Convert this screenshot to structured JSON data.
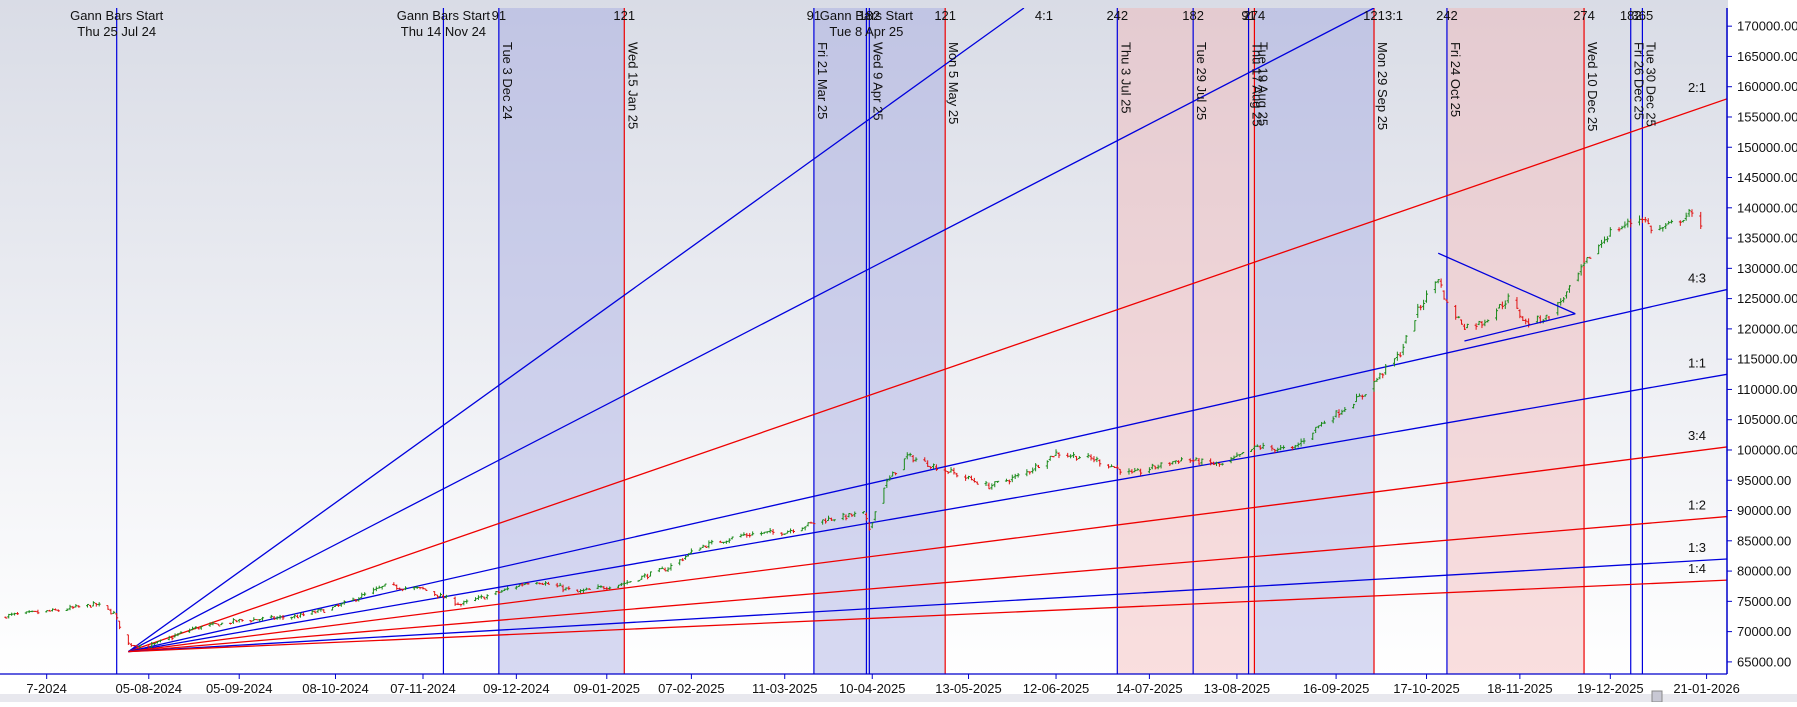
{
  "chart_data": {
    "type": "candlestick",
    "y_axis": {
      "range": [
        63000,
        173000
      ],
      "ticks": [
        "65000.00",
        "70000.00",
        "75000.00",
        "80000.00",
        "85000.00",
        "90000.00",
        "95000.00",
        "100000.00",
        "105000.00",
        "110000.00",
        "115000.00",
        "120000.00",
        "125000.00",
        "130000.00",
        "135000.00",
        "140000.00",
        "145000.00",
        "150000.00",
        "155000.00",
        "160000.00",
        "165000.00",
        "170000.00"
      ]
    },
    "x_axis": {
      "range_start": "2024-06-15",
      "range_end": "2026-01-28",
      "ticks": [
        "2024-07-01",
        "2024-08-05",
        "2024-09-05",
        "2024-10-08",
        "2024-11-07",
        "2024-12-09",
        "2025-01-09",
        "2025-02-07",
        "2025-03-11",
        "2025-04-10",
        "2025-05-13",
        "2025-06-12",
        "2025-07-14",
        "2025-08-13",
        "2025-09-16",
        "2025-10-17",
        "2025-11-18",
        "2025-12-19",
        "2026-01-21"
      ],
      "tick_labels": [
        "7-2024",
        "05-08-2024",
        "05-09-2024",
        "08-10-2024",
        "07-11-2024",
        "09-12-2024",
        "09-01-2025",
        "07-02-2025",
        "11-03-2025",
        "10-04-2025",
        "13-05-2025",
        "12-06-2025",
        "14-07-2025",
        "13-08-2025",
        "16-09-2025",
        "17-10-2025",
        "18-11-2025",
        "19-12-2025",
        "21-01-2026"
      ]
    },
    "price_path": [
      [
        "2024-06-15",
        72500
      ],
      [
        "2024-07-05",
        73500
      ],
      [
        "2024-07-18",
        74500
      ],
      [
        "2024-07-24",
        73000
      ],
      [
        "2024-07-29",
        68000
      ],
      [
        "2024-08-05",
        67500
      ],
      [
        "2024-08-20",
        70500
      ],
      [
        "2024-09-05",
        71800
      ],
      [
        "2024-09-25",
        72500
      ],
      [
        "2024-10-08",
        74000
      ],
      [
        "2024-10-25",
        77500
      ],
      [
        "2024-11-07",
        77000
      ],
      [
        "2024-11-20",
        74500
      ],
      [
        "2024-12-03",
        76500
      ],
      [
        "2024-12-15",
        78500
      ],
      [
        "2024-12-30",
        76500
      ],
      [
        "2025-01-15",
        78000
      ],
      [
        "2025-01-30",
        80500
      ],
      [
        "2025-02-10",
        84000
      ],
      [
        "2025-02-25",
        86000
      ],
      [
        "2025-03-11",
        86500
      ],
      [
        "2025-03-25",
        88500
      ],
      [
        "2025-04-07",
        89500
      ],
      [
        "2025-04-09",
        87000
      ],
      [
        "2025-04-14",
        94000
      ],
      [
        "2025-04-22",
        99000
      ],
      [
        "2025-05-06",
        96500
      ],
      [
        "2025-05-20",
        94000
      ],
      [
        "2025-06-01",
        96000
      ],
      [
        "2025-06-12",
        99500
      ],
      [
        "2025-06-25",
        98500
      ],
      [
        "2025-07-08",
        96000
      ],
      [
        "2025-07-25",
        98500
      ],
      [
        "2025-08-08",
        97500
      ],
      [
        "2025-08-20",
        100500
      ],
      [
        "2025-09-01",
        100000
      ],
      [
        "2025-09-10",
        104000
      ],
      [
        "2025-09-25",
        109000
      ],
      [
        "2025-10-08",
        116000
      ],
      [
        "2025-10-14",
        123000
      ],
      [
        "2025-10-21",
        128500
      ],
      [
        "2025-10-24",
        124000
      ],
      [
        "2025-10-30",
        120500
      ],
      [
        "2025-11-05",
        121000
      ],
      [
        "2025-11-14",
        125000
      ],
      [
        "2025-11-20",
        121000
      ],
      [
        "2025-11-28",
        122000
      ],
      [
        "2025-12-05",
        126500
      ],
      [
        "2025-12-12",
        132000
      ],
      [
        "2025-12-19",
        136000
      ],
      [
        "2025-12-30",
        138500
      ],
      [
        "2026-01-03",
        136000
      ],
      [
        "2026-01-10",
        137500
      ],
      [
        "2026-01-15",
        139000
      ],
      [
        "2026-01-19",
        137500
      ]
    ],
    "up_color": "#1a8a1a",
    "down_color": "#e01010",
    "shaded_bands": [
      {
        "start": "2024-12-03",
        "end": "2025-01-15",
        "color": "#9fa4e0"
      },
      {
        "start": "2025-03-21",
        "end": "2025-05-05",
        "color": "#9fa4e0"
      },
      {
        "start": "2025-07-03",
        "end": "2025-08-19",
        "color": "#f3b3b3"
      },
      {
        "start": "2025-08-19",
        "end": "2025-09-29",
        "color": "#9fa4e0"
      },
      {
        "start": "2025-10-24",
        "end": "2025-12-10",
        "color": "#f3b3b3"
      }
    ],
    "vertical_lines": [
      {
        "date": "2024-07-25",
        "color": "#0000dd",
        "label": ""
      },
      {
        "date": "2024-11-14",
        "color": "#0000dd",
        "label": ""
      },
      {
        "date": "2024-12-03",
        "color": "#0000dd",
        "label": "Tue 3 Dec 24"
      },
      {
        "date": "2025-01-15",
        "color": "#ee0000",
        "label": "Wed 15 Jan 25"
      },
      {
        "date": "2025-03-21",
        "color": "#0000dd",
        "label": "Fri 21 Mar 25"
      },
      {
        "date": "2025-04-08",
        "color": "#0000dd",
        "label": ""
      },
      {
        "date": "2025-04-09",
        "color": "#0000dd",
        "label": "Wed 9 Apr 25"
      },
      {
        "date": "2025-05-05",
        "color": "#ee0000",
        "label": "Mon 5 May 25"
      },
      {
        "date": "2025-07-03",
        "color": "#0000dd",
        "label": "Thu 3 Jul 25"
      },
      {
        "date": "2025-07-29",
        "color": "#0000dd",
        "label": "Tue 29 Jul 25"
      },
      {
        "date": "2025-08-17",
        "color": "#0000dd",
        "label": "Thu 17 Aug 25"
      },
      {
        "date": "2025-08-19",
        "color": "#ee0000",
        "label": "Tue 19 Aug 25"
      },
      {
        "date": "2025-09-29",
        "color": "#ee0000",
        "label": "Mon 29 Sep 25"
      },
      {
        "date": "2025-10-24",
        "color": "#0000dd",
        "label": "Fri 24 Oct 25"
      },
      {
        "date": "2025-12-10",
        "color": "#ee0000",
        "label": "Wed 10 Dec 25"
      },
      {
        "date": "2025-12-26",
        "color": "#0000dd",
        "label": "Fri 26 Dec 25"
      },
      {
        "date": "2025-12-30",
        "color": "#0000dd",
        "label": "Tue 30 Dec 25"
      }
    ],
    "top_annotations": [
      {
        "date": "2024-07-25",
        "lines": [
          "Gann Bars Start",
          "Thu 25 Jul 24"
        ]
      },
      {
        "date": "2024-11-14",
        "lines": [
          "Gann Bars Start",
          "Thu 14 Nov 24"
        ]
      },
      {
        "date": "2025-04-08",
        "lines": [
          "Gann Bars Start",
          "Tue 8 Apr 25"
        ]
      }
    ],
    "bar_counts": [
      {
        "date": "2024-12-03",
        "text": "91"
      },
      {
        "date": "2025-01-15",
        "text": "121"
      },
      {
        "date": "2025-03-21",
        "text": "91"
      },
      {
        "date": "2025-04-09",
        "text": "182"
      },
      {
        "date": "2025-05-05",
        "text": "121"
      },
      {
        "date": "2025-07-03",
        "text": "242"
      },
      {
        "date": "2025-07-29",
        "text": "182"
      },
      {
        "date": "2025-08-17",
        "text": "91"
      },
      {
        "date": "2025-08-19",
        "text": "274"
      },
      {
        "date": "2025-09-29",
        "text": "121"
      },
      {
        "date": "2025-10-24",
        "text": "242"
      },
      {
        "date": "2025-12-10",
        "text": "274"
      },
      {
        "date": "2025-12-26",
        "text": "182"
      },
      {
        "date": "2025-12-30",
        "text": "365"
      }
    ],
    "gann_fan": {
      "origin": [
        "2024-07-29",
        66700
      ],
      "lines": [
        {
          "label": "4:1",
          "color": "#0000dd",
          "end": [
            "2025-06-01",
            173000
          ]
        },
        {
          "label": "3:1",
          "color": "#0000dd",
          "end": [
            "2025-09-29",
            173000
          ]
        },
        {
          "label": "2:1",
          "color": "#ee0000",
          "end": [
            "2026-01-28",
            158000
          ]
        },
        {
          "label": "4:3",
          "color": "#0000dd",
          "end": [
            "2026-01-28",
            126500
          ]
        },
        {
          "label": "1:1",
          "color": "#0000dd",
          "end": [
            "2026-01-28",
            112500
          ]
        },
        {
          "label": "3:4",
          "color": "#ee0000",
          "end": [
            "2026-01-28",
            100500
          ]
        },
        {
          "label": "1:2",
          "color": "#ee0000",
          "end": [
            "2026-01-28",
            89000
          ]
        },
        {
          "label": "1:3",
          "color": "#0000dd",
          "end": [
            "2026-01-28",
            82000
          ]
        },
        {
          "label": "1:4",
          "color": "#ee0000",
          "end": [
            "2026-01-28",
            78500
          ]
        }
      ]
    },
    "trendlines": [
      {
        "from": [
          "2025-10-21",
          132500
        ],
        "to": [
          "2025-12-07",
          122500
        ],
        "color": "#0000dd"
      },
      {
        "from": [
          "2025-10-30",
          118000
        ],
        "to": [
          "2025-12-07",
          122500
        ],
        "color": "#0000dd"
      }
    ],
    "grid": false
  }
}
